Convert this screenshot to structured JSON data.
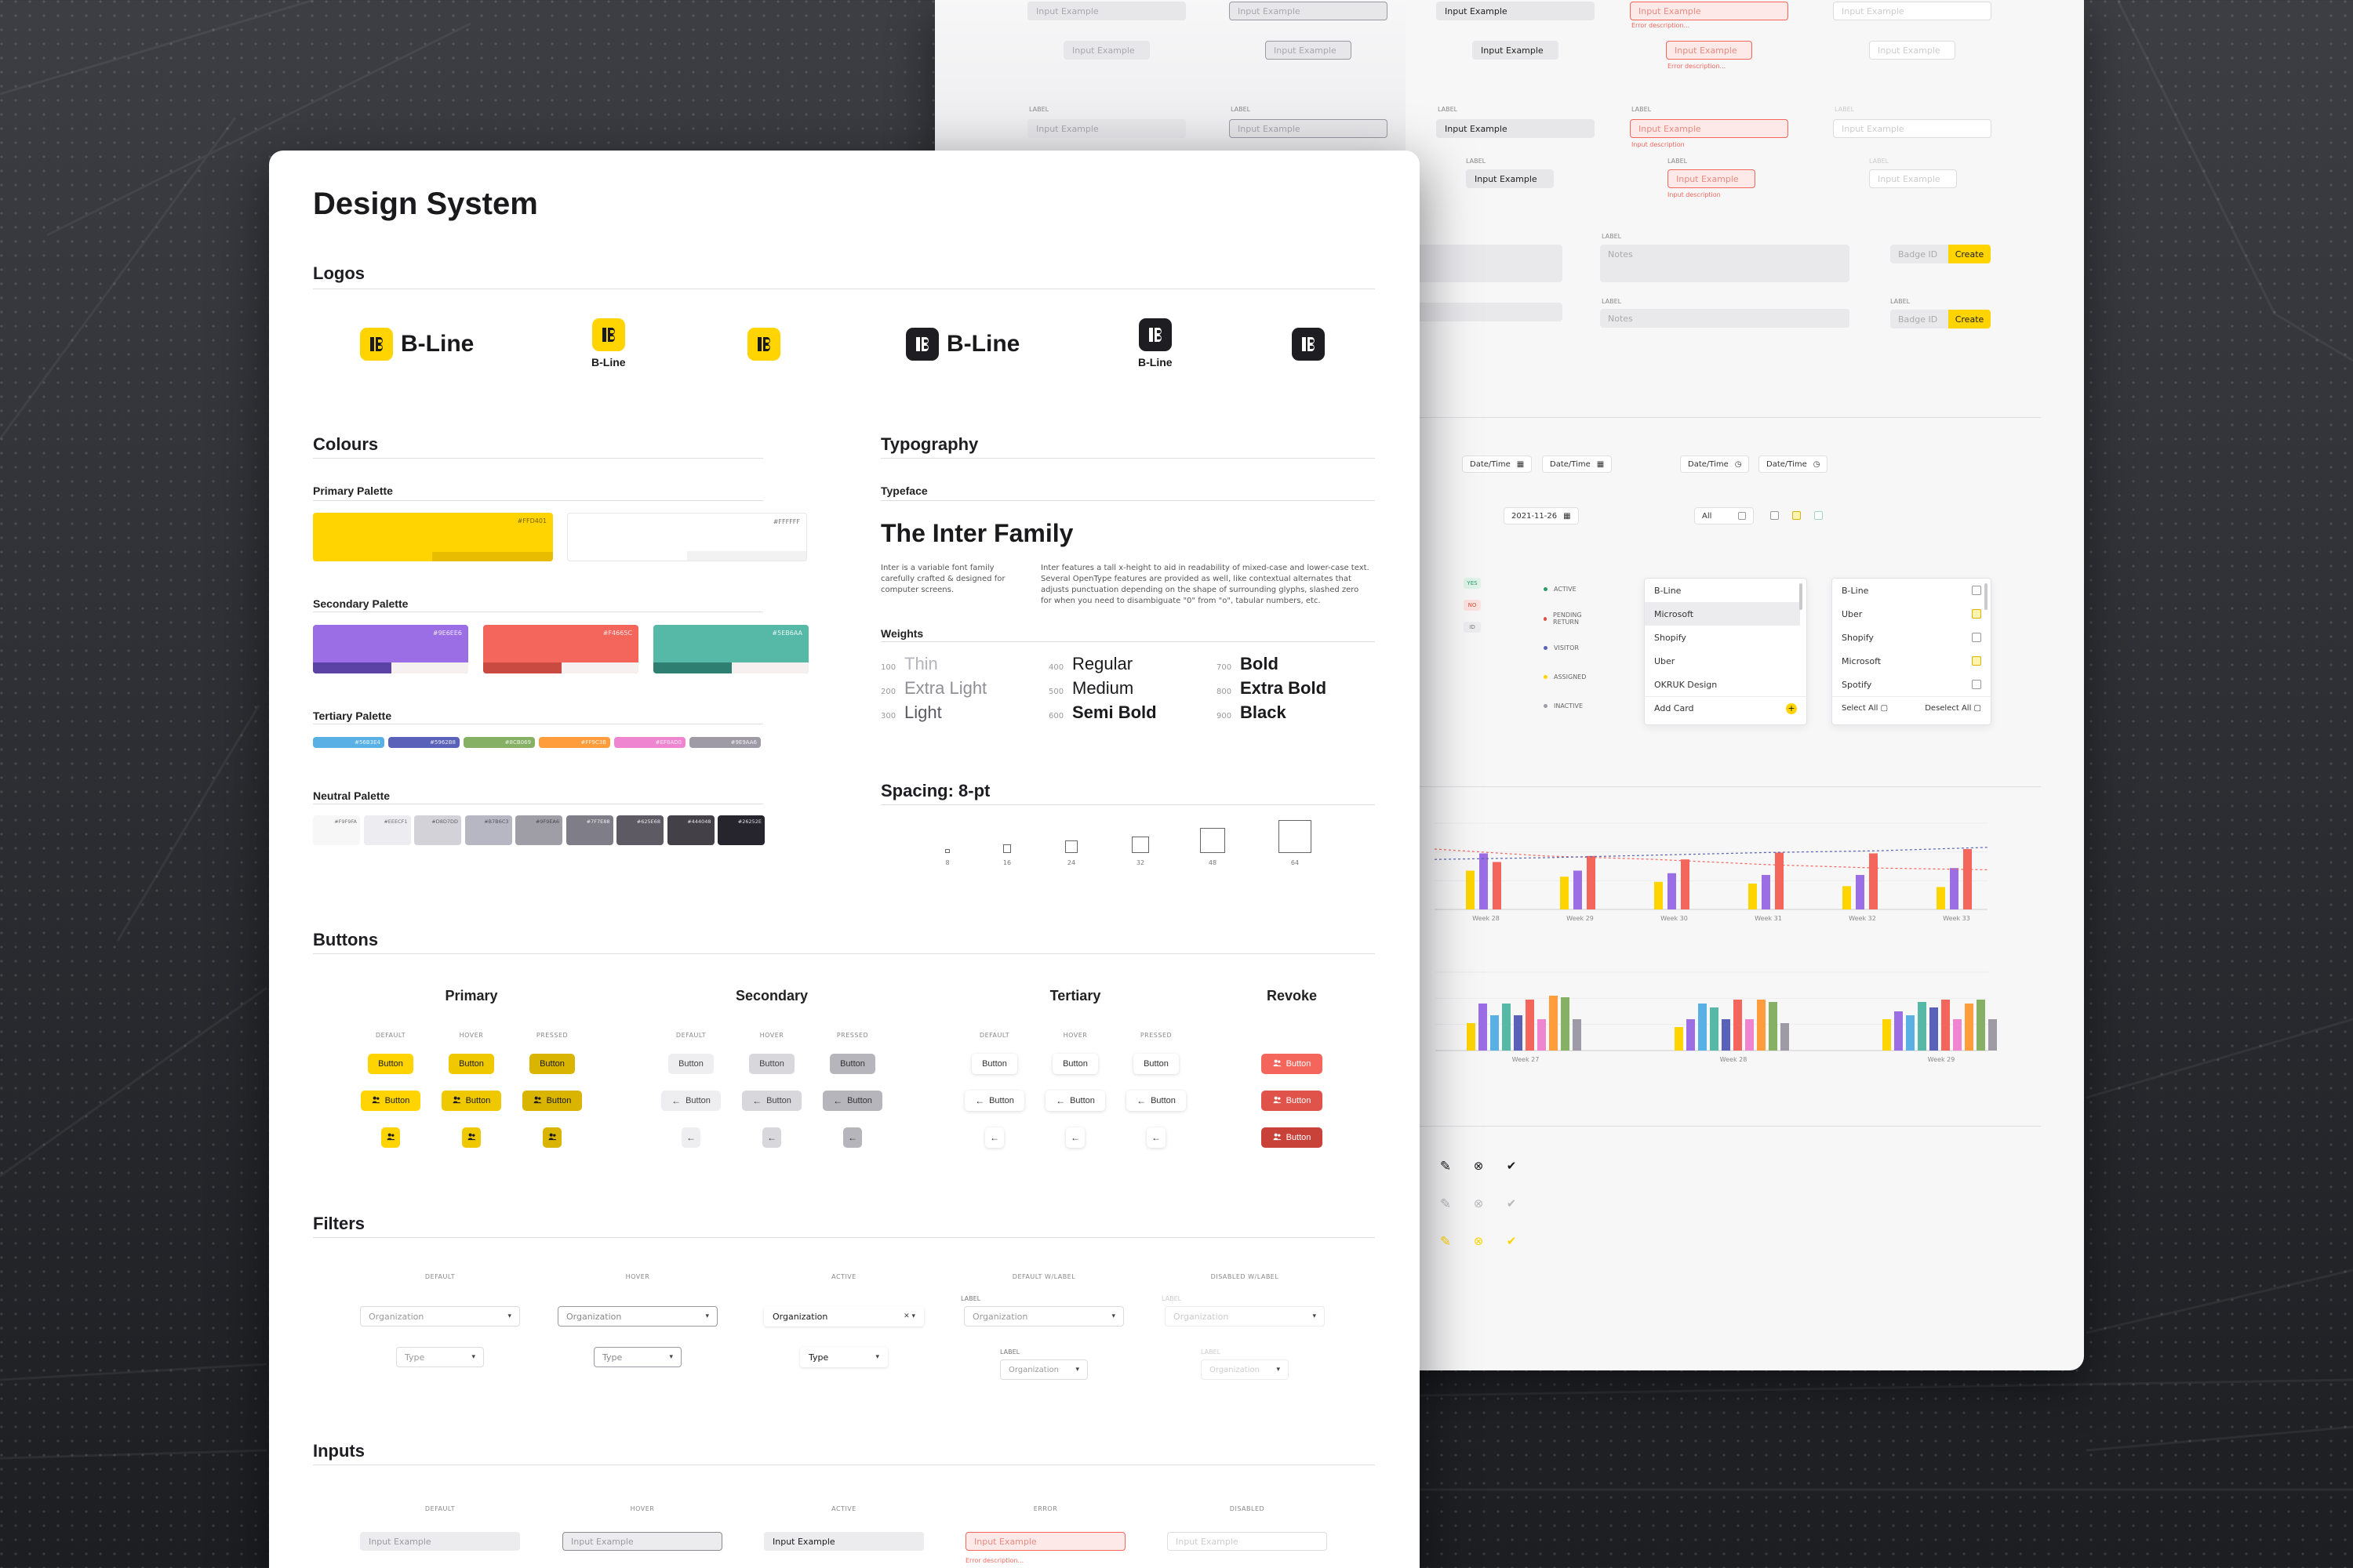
{
  "page": {
    "title": "Design System"
  },
  "logos": {
    "title": "Logos",
    "items": [
      {
        "word": "B-Line",
        "variant": "horizontal",
        "color": "#FFD401"
      },
      {
        "word": "B-Line",
        "variant": "stacked",
        "color": "#FFD401"
      },
      {
        "word": "",
        "variant": "mark",
        "color": "#FFD401"
      },
      {
        "word": "B-Line",
        "variant": "horizontal",
        "color": "#1E1E22"
      },
      {
        "word": "B-Line",
        "variant": "stacked",
        "color": "#1E1E22"
      },
      {
        "word": "",
        "variant": "mark",
        "color": "#1E1E22"
      }
    ]
  },
  "colours": {
    "title": "Colours",
    "primary": {
      "label": "Primary Palette",
      "swatches": [
        {
          "hex": "#FFD401",
          "color": "#FFD401",
          "accent": "#E8BC00"
        },
        {
          "hex": "#FFFFFF",
          "color": "#FFFFFF",
          "accent": "#F2F2F3"
        }
      ]
    },
    "secondary": {
      "label": "Secondary Palette",
      "swatches": [
        {
          "hex": "#9E6EE6",
          "color": "#9B6EE6",
          "accent": "#5B43A6"
        },
        {
          "hex": "#F4665C",
          "color": "#F4665C",
          "accent": "#C84A40"
        },
        {
          "hex": "#5EB6AA",
          "color": "#56B9A7",
          "accent": "#2E7E72"
        }
      ]
    },
    "tertiary": {
      "label": "Tertiary Palette",
      "swatches": [
        {
          "hex": "#56B3E4",
          "color": "#58B0E4"
        },
        {
          "hex": "#5962B8",
          "color": "#5962B8"
        },
        {
          "hex": "#8CB069",
          "color": "#86B064"
        },
        {
          "hex": "#FF9C3B",
          "color": "#FF9C3B"
        },
        {
          "hex": "#EF8AD0",
          "color": "#EF85D0"
        },
        {
          "hex": "#9E9AA6",
          "color": "#9E9AA6"
        }
      ]
    },
    "neutral": {
      "label": "Neutral Palette",
      "swatches": [
        {
          "hex": "#F9F9FA",
          "color": "#F7F7F8"
        },
        {
          "hex": "#EEECF1",
          "color": "#EDECF1"
        },
        {
          "hex": "#D8D7DD",
          "color": "#D3D2D8"
        },
        {
          "hex": "#B7B6C3",
          "color": "#B7B6C3"
        },
        {
          "hex": "#9F9EA6",
          "color": "#9F9EA6"
        },
        {
          "hex": "#7F7E88",
          "color": "#7F7E88"
        },
        {
          "hex": "#625E68",
          "color": "#5D5A63"
        },
        {
          "hex": "#444048",
          "color": "#444048"
        },
        {
          "hex": "#26252E",
          "color": "#26252E"
        }
      ]
    }
  },
  "typography": {
    "title": "Typography",
    "typeface_label": "Typeface",
    "family": "The Inter Family",
    "desc1": "Inter is a variable font family carefully crafted & designed for computer screens.",
    "desc2": "Inter features a tall x-height to aid in readability of mixed-case and lower-case text. Several OpenType features are provided as well, like contextual alternates that adjusts punctuation depending on the shape of surrounding glyphs, slashed zero for when you need to disambiguate \"0\" from \"o\", tabular numbers, etc.",
    "weights_label": "Weights",
    "weights": [
      {
        "num": "100",
        "name": "Thin"
      },
      {
        "num": "200",
        "name": "Extra Light"
      },
      {
        "num": "300",
        "name": "Light"
      },
      {
        "num": "400",
        "name": "Regular"
      },
      {
        "num": "500",
        "name": "Medium"
      },
      {
        "num": "600",
        "name": "Semi Bold"
      },
      {
        "num": "700",
        "name": "Bold"
      },
      {
        "num": "800",
        "name": "Extra Bold"
      },
      {
        "num": "900",
        "name": "Black"
      }
    ],
    "spacing_title": "Spacing: 8-pt",
    "spacing": [
      "8",
      "16",
      "24",
      "32",
      "48",
      "64"
    ]
  },
  "buttons": {
    "title": "Buttons",
    "groups": [
      "Primary",
      "Secondary",
      "Tertiary",
      "Revoke"
    ],
    "states": [
      "DEFAULT",
      "HOVER",
      "PRESSED"
    ],
    "label": "Button"
  },
  "filters": {
    "title": "Filters",
    "states": [
      "DEFAULT",
      "HOVER",
      "ACTIVE",
      "DEFAULT W/LABEL",
      "DISABLED W/LABEL"
    ],
    "label": "LABEL",
    "org": "Organization",
    "type": "Type"
  },
  "inputs": {
    "title": "Inputs",
    "states": [
      "DEFAULT",
      "HOVER",
      "ACTIVE",
      "ERROR",
      "DISABLED"
    ],
    "placeholder": "Input Example",
    "error": "Error description..."
  },
  "back": {
    "input": "Input Example",
    "label": "LABEL",
    "error": "Error description...",
    "input_desc": "Input description",
    "notes": "Notes",
    "badge": "Badge ID",
    "create": "Create",
    "datetime": "Date/Time",
    "date": "2021-11-26",
    "all": "All",
    "status": [
      "ACTIVE",
      "PENDING RETURN",
      "VISITOR",
      "ASSIGNED",
      "INACTIVE"
    ],
    "pills": [
      "YES",
      "NO",
      "ID"
    ],
    "list1": [
      "B-Line",
      "Microsoft",
      "Shopify",
      "Uber",
      "OKRUK Design"
    ],
    "add_card": "Add Card",
    "list2": [
      "B-Line",
      "Uber",
      "Shopify",
      "Microsoft",
      "Spotify"
    ],
    "select_all": "Select All",
    "deselect_all": "Deselect All",
    "weeks1": [
      "Week 28",
      "Week 29",
      "Week 30",
      "Week 31",
      "Week 32",
      "Week 33"
    ],
    "weeks2": [
      "Week 27",
      "Week 28",
      "Week 29"
    ],
    "icon_names": [
      "fingerprint-icon",
      "arrow-left-icon",
      "chat-icon",
      "logout-icon",
      "search-icon",
      "clock-icon",
      "bell-icon",
      "users-icon",
      "document-icon",
      "trash-icon",
      "star-icon",
      "shield-icon",
      "file-icon",
      "help-icon",
      "square-icon",
      "pencil-icon",
      "close-circle-icon",
      "check-circle-icon"
    ]
  },
  "chart_data": [
    {
      "type": "bar",
      "categories": [
        "Week 28",
        "Week 29",
        "Week 30",
        "Week 31",
        "Week 32",
        "Week 33"
      ],
      "series": [
        {
          "color": "#FFD401",
          "values": [
            45,
            38,
            32,
            30,
            27,
            26
          ]
        },
        {
          "color": "#9B6EE6",
          "values": [
            65,
            45,
            42,
            40,
            40,
            48
          ]
        },
        {
          "color": "#F4665C",
          "values": [
            55,
            62,
            58,
            66,
            65,
            70
          ]
        }
      ]
    },
    {
      "type": "bar",
      "categories": [
        "Week 27",
        "Week 28",
        "Week 29"
      ],
      "series": [
        {
          "color": "#FFD401",
          "values": [
            35,
            30,
            40
          ]
        },
        {
          "color": "#9B6EE6",
          "values": [
            60,
            40,
            50
          ]
        },
        {
          "color": "#58B0E4",
          "values": [
            45,
            60,
            45
          ]
        },
        {
          "color": "#56B9A7",
          "values": [
            60,
            55,
            62
          ]
        },
        {
          "color": "#5962B8",
          "values": [
            45,
            40,
            55
          ]
        },
        {
          "color": "#F4665C",
          "values": [
            65,
            65,
            65
          ]
        },
        {
          "color": "#EF85D0",
          "values": [
            40,
            40,
            40
          ]
        },
        {
          "color": "#FF9C3B",
          "values": [
            70,
            65,
            60
          ]
        },
        {
          "color": "#86B064",
          "values": [
            68,
            62,
            65
          ]
        },
        {
          "color": "#9E9AA6",
          "values": [
            40,
            35,
            40
          ]
        }
      ]
    }
  ]
}
